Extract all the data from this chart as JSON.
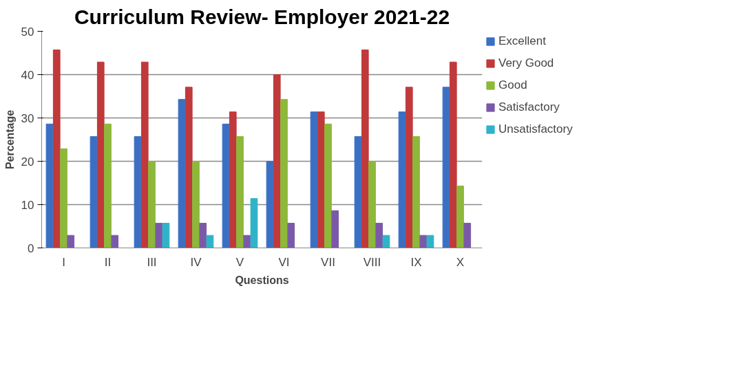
{
  "chart_data": {
    "type": "bar",
    "title": "Curriculum Review- Employer 2021-22",
    "xlabel": "Questions",
    "ylabel": "Percentage",
    "categories": [
      "I",
      "II",
      "III",
      "IV",
      "V",
      "VI",
      "VII",
      "VIII",
      "IX",
      "X"
    ],
    "series": [
      {
        "name": "Excellent",
        "color": "#3a6fc4",
        "values": [
          28.6,
          25.7,
          25.7,
          34.3,
          28.6,
          20,
          31.4,
          25.7,
          31.4,
          37.1
        ]
      },
      {
        "name": "Very Good",
        "color": "#c0393b",
        "values": [
          45.7,
          42.9,
          42.9,
          37.1,
          31.4,
          40,
          31.4,
          45.7,
          37.1,
          42.9
        ]
      },
      {
        "name": "Good",
        "color": "#8db83a",
        "values": [
          22.9,
          28.6,
          20,
          20,
          25.7,
          34.3,
          28.6,
          20,
          25.7,
          14.3
        ]
      },
      {
        "name": "Satisfactory",
        "color": "#7a5aa8",
        "values": [
          2.9,
          2.9,
          5.7,
          5.7,
          2.9,
          5.7,
          8.6,
          5.7,
          2.9,
          5.7
        ]
      },
      {
        "name": "Unsatisfactory",
        "color": "#2fb3c8",
        "values": [
          null,
          null,
          5.7,
          2.9,
          11.4,
          null,
          null,
          2.9,
          2.9,
          null
        ]
      }
    ],
    "ylim": [
      0,
      50
    ],
    "yticks": [
      0,
      10,
      20,
      30,
      40,
      50
    ],
    "grid": "y",
    "legend": "right"
  }
}
